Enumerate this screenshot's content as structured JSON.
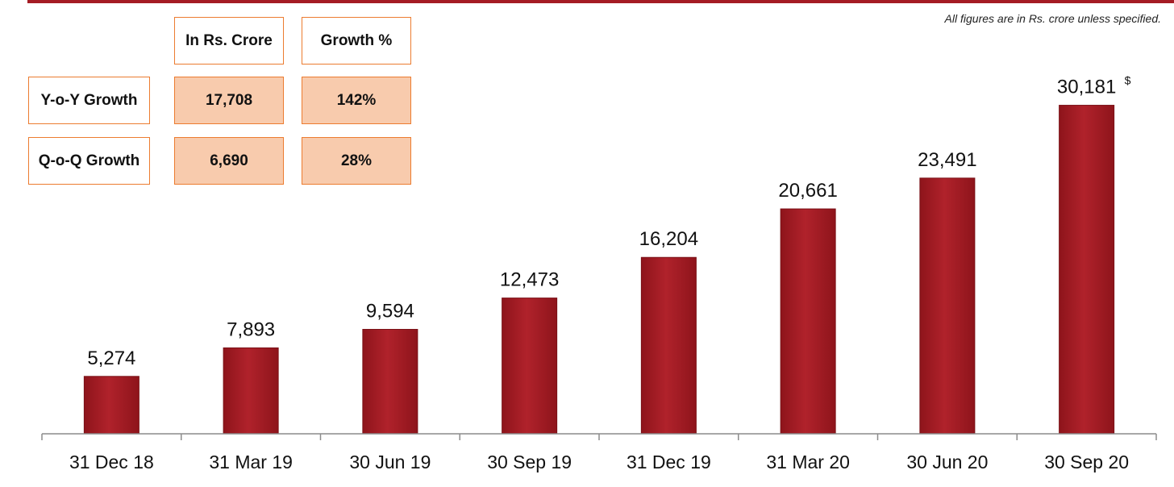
{
  "note": "All figures are in Rs. crore unless specified.",
  "growth_table": {
    "headers": [
      "In Rs. Crore",
      "Growth %"
    ],
    "rows": [
      {
        "label": "Y-o-Y Growth",
        "value": "17,708",
        "growth": "142%"
      },
      {
        "label": "Q-o-Q Growth",
        "value": "6,690",
        "growth": "28%"
      }
    ]
  },
  "chart_data": {
    "type": "bar",
    "categories": [
      "31 Dec 18",
      "31 Mar 19",
      "30 Jun 19",
      "30 Sep 19",
      "31 Dec 19",
      "31 Mar 20",
      "30 Jun 20",
      "30 Sep 20"
    ],
    "values": [
      5274,
      7893,
      9594,
      12473,
      16204,
      20661,
      23491,
      30181
    ],
    "data_labels": [
      "5,274",
      "7,893",
      "9,594",
      "12,473",
      "16,204",
      "20,661",
      "23,491",
      "30,181"
    ],
    "footnote_markers": [
      "",
      "",
      "",
      "",
      "",
      "",
      "",
      "$"
    ],
    "title": "",
    "xlabel": "",
    "ylabel": "",
    "ylim": [
      0,
      32000
    ],
    "grid": false,
    "bar_color": "#a51c24"
  }
}
